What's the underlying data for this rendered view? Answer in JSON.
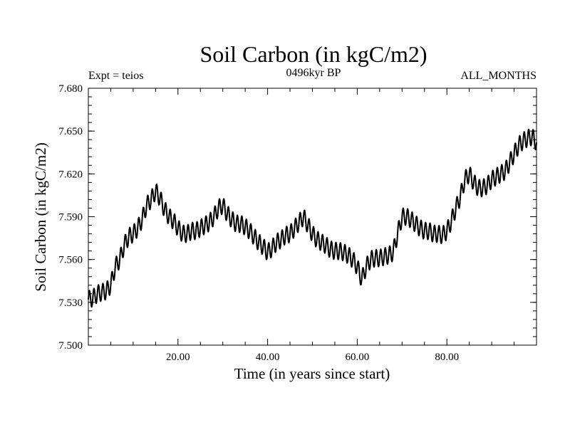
{
  "chart_data": {
    "type": "line",
    "title": "Soil Carbon (in kgC/m2)",
    "subtitle": "0496kyr BP",
    "annotation_left": "Expt = teios",
    "annotation_right": "ALL_MONTHS",
    "xlabel": "Time (in years since start)",
    "ylabel": "Soil Carbon (in kgC/m2)",
    "xlim": [
      0.0,
      100.0
    ],
    "ylim": [
      7.5,
      7.68
    ],
    "x_ticks": [
      {
        "value": 20,
        "label": "20.00"
      },
      {
        "value": 40,
        "label": "40.00"
      },
      {
        "value": 60,
        "label": "60.00"
      },
      {
        "value": 80,
        "label": "80.00"
      }
    ],
    "y_ticks": [
      {
        "value": 7.5,
        "label": "7.500"
      },
      {
        "value": 7.53,
        "label": "7.530"
      },
      {
        "value": 7.56,
        "label": "7.560"
      },
      {
        "value": 7.59,
        "label": "7.590"
      },
      {
        "value": 7.62,
        "label": "7.620"
      },
      {
        "value": 7.65,
        "label": "7.650"
      },
      {
        "value": 7.68,
        "label": "7.680"
      }
    ],
    "series": [
      {
        "name": "Soil Carbon",
        "color": "#000000",
        "seasonal_amplitude": 0.006,
        "x": [
          0,
          1,
          2,
          3,
          4,
          5,
          6,
          7,
          8,
          9,
          10,
          11,
          12,
          13,
          14,
          15,
          16,
          17,
          18,
          19,
          20,
          21,
          22,
          23,
          24,
          25,
          26,
          27,
          28,
          29,
          30,
          31,
          32,
          33,
          34,
          35,
          36,
          37,
          38,
          39,
          40,
          41,
          42,
          43,
          44,
          45,
          46,
          47,
          48,
          49,
          50,
          51,
          52,
          53,
          54,
          55,
          56,
          57,
          58,
          59,
          60,
          61,
          62,
          63,
          64,
          65,
          66,
          67,
          68,
          69,
          70,
          71,
          72,
          73,
          74,
          75,
          76,
          77,
          78,
          79,
          80,
          81,
          82,
          83,
          84,
          85,
          86,
          87,
          88,
          89,
          90,
          91,
          92,
          93,
          94,
          95,
          96,
          97,
          98,
          99,
          100
        ],
        "y": [
          7.532,
          7.533,
          7.536,
          7.537,
          7.538,
          7.542,
          7.555,
          7.56,
          7.57,
          7.576,
          7.578,
          7.582,
          7.588,
          7.598,
          7.602,
          7.608,
          7.603,
          7.595,
          7.59,
          7.587,
          7.582,
          7.578,
          7.578,
          7.58,
          7.58,
          7.582,
          7.584,
          7.586,
          7.59,
          7.596,
          7.598,
          7.592,
          7.588,
          7.585,
          7.585,
          7.583,
          7.58,
          7.576,
          7.572,
          7.569,
          7.565,
          7.568,
          7.572,
          7.574,
          7.577,
          7.578,
          7.582,
          7.586,
          7.59,
          7.584,
          7.578,
          7.574,
          7.572,
          7.57,
          7.567,
          7.566,
          7.566,
          7.565,
          7.563,
          7.56,
          7.555,
          7.546,
          7.555,
          7.56,
          7.561,
          7.561,
          7.562,
          7.563,
          7.565,
          7.578,
          7.59,
          7.59,
          7.588,
          7.585,
          7.582,
          7.58,
          7.58,
          7.578,
          7.578,
          7.577,
          7.58,
          7.587,
          7.596,
          7.604,
          7.616,
          7.62,
          7.614,
          7.61,
          7.61,
          7.612,
          7.616,
          7.618,
          7.62,
          7.622,
          7.628,
          7.634,
          7.64,
          7.643,
          7.645,
          7.646,
          7.642
        ]
      }
    ]
  }
}
